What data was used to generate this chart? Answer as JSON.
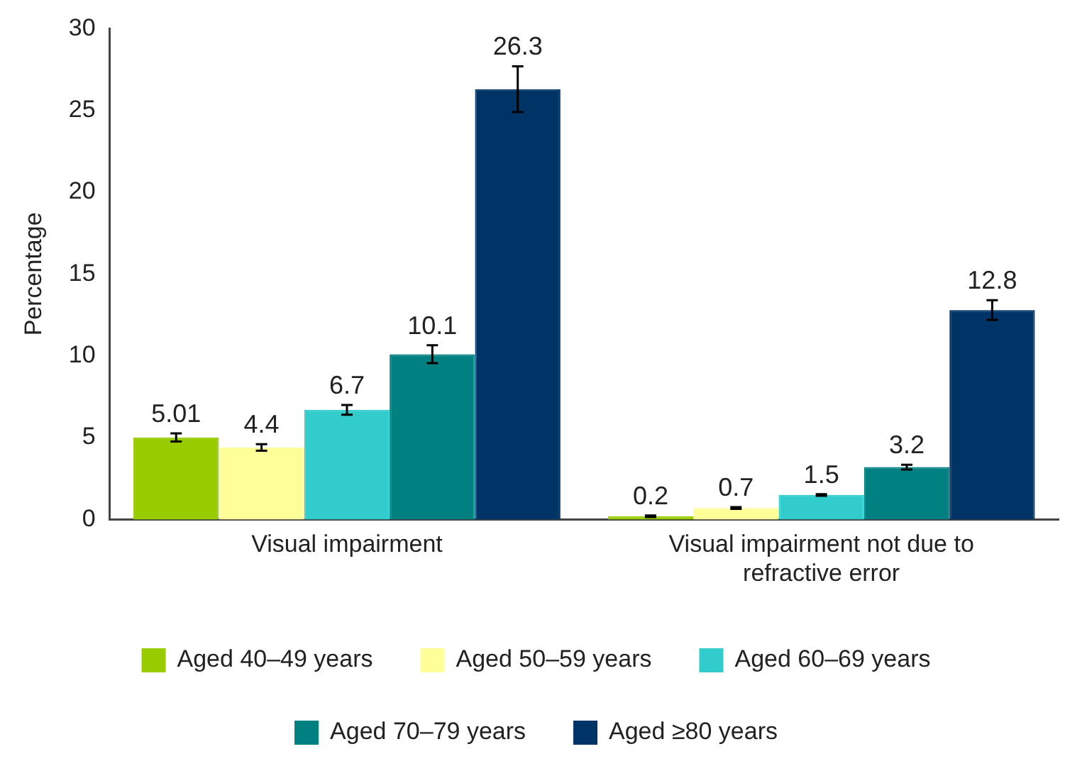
{
  "chart_data": {
    "type": "bar",
    "ylabel": "Percentage",
    "categories": [
      "Visual impairment",
      "Visual impairment not due to refractive error"
    ],
    "series": [
      {
        "name": "Aged 40–49 years",
        "color": "#99cc00",
        "values": [
          5.01,
          0.2
        ],
        "errors": [
          0.25,
          0.05
        ]
      },
      {
        "name": "Aged 50–59 years",
        "color": "#ffff99",
        "values": [
          4.4,
          0.7
        ],
        "errors": [
          0.2,
          0.05
        ]
      },
      {
        "name": "Aged 60–69 years",
        "color": "#33cccc",
        "values": [
          6.7,
          1.5
        ],
        "errors": [
          0.3,
          0.05
        ]
      },
      {
        "name": "Aged 70–79 years",
        "color": "#008080",
        "values": [
          10.1,
          3.2
        ],
        "errors": [
          0.55,
          0.15
        ]
      },
      {
        "name": "Aged ≥80 years",
        "color": "#003366",
        "values": [
          26.3,
          12.8
        ],
        "errors": [
          1.4,
          0.6
        ]
      }
    ],
    "ylim": [
      0,
      30
    ],
    "yticks": [
      0,
      5,
      10,
      15,
      20,
      25,
      30
    ],
    "grid": false,
    "legend": "bottom",
    "data_labels": true
  }
}
